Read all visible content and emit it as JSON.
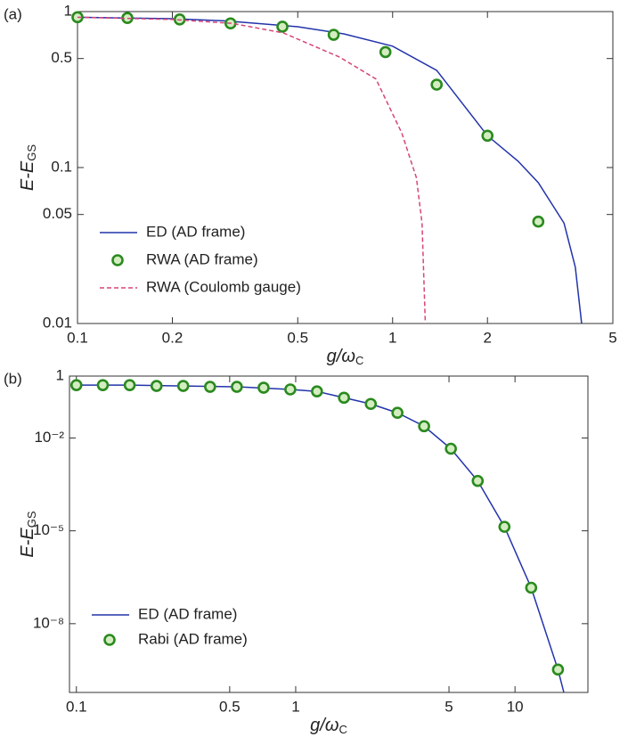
{
  "chart_data": [
    {
      "type": "line",
      "panel_label": "(a)",
      "log_x": true,
      "log_y": true,
      "legend": "lower left",
      "xlabel": {
        "text": "g/ω",
        "sub": "C"
      },
      "ylabel": {
        "text": "E-E",
        "sub": "GS"
      },
      "xlim": [
        0.1,
        5
      ],
      "ylim": [
        0.01,
        1
      ],
      "xticks": [
        0.1,
        0.2,
        0.5,
        1,
        2,
        5
      ],
      "yticks": [
        0.01,
        0.05,
        0.1,
        0.5,
        1
      ],
      "series": [
        {
          "name": "ED (AD frame)",
          "color": "#2233aa",
          "style": "line",
          "x": [
            0.1,
            0.2,
            0.3,
            0.5,
            0.7,
            1,
            1.38,
            2,
            2.5,
            2.9,
            3.5,
            3.8,
            3.98
          ],
          "values": [
            0.92,
            0.9,
            0.87,
            0.8,
            0.72,
            0.6,
            0.42,
            0.16,
            0.11,
            0.08,
            0.044,
            0.023,
            0.01
          ]
        },
        {
          "name": "RWA (AD frame)",
          "color": "#2a8a1f",
          "style": "markers",
          "x": [
            0.1,
            0.144,
            0.211,
            0.306,
            0.447,
            0.65,
            0.949,
            1.38,
            2.0,
            2.9
          ],
          "values": [
            0.92,
            0.91,
            0.89,
            0.84,
            0.8,
            0.71,
            0.55,
            0.34,
            0.16,
            0.045
          ]
        },
        {
          "name": "RWA (Coulomb gauge)",
          "color": "#d6457a",
          "style": "dashed",
          "x": [
            0.1,
            0.2,
            0.31,
            0.45,
            0.68,
            0.885,
            1.07,
            1.19,
            1.24,
            1.27
          ],
          "values": [
            0.92,
            0.89,
            0.84,
            0.73,
            0.51,
            0.37,
            0.166,
            0.086,
            0.044,
            0.01
          ]
        }
      ]
    },
    {
      "type": "line",
      "panel_label": "(b)",
      "log_x": true,
      "log_y": true,
      "legend": "lower left",
      "xlabel": {
        "text": "g/ω",
        "sub": "C"
      },
      "ylabel": {
        "text": "E-E",
        "sub": "GS"
      },
      "xlim": [
        0.093,
        21.5
      ],
      "ylim": [
        6e-11,
        1
      ],
      "xticks": [
        0.1,
        0.5,
        1,
        5,
        10
      ],
      "yticks": [
        1,
        {
          "value": 0.01,
          "label": "10⁻²"
        },
        {
          "value": 1e-05,
          "label": "10⁻⁵"
        },
        {
          "value": 1e-08,
          "label": "10⁻⁸"
        }
      ],
      "series": [
        {
          "name": "ED (AD frame)",
          "color": "#2233aa",
          "style": "line",
          "x": [
            0.1,
            0.175,
            0.307,
            0.539,
            0.945,
            1.25,
            1.66,
            2.2,
            2.91,
            3.85,
            5.1,
            6.76,
            8.95,
            11.85,
            15.7,
            16.7
          ],
          "values": [
            0.51,
            0.51,
            0.48,
            0.45,
            0.37,
            0.32,
            0.2,
            0.126,
            0.065,
            0.024,
            0.0045,
            0.00041,
            1.35e-05,
            1.45e-07,
            3.3e-10,
            6e-11
          ]
        },
        {
          "name": "Rabi (AD frame)",
          "color": "#2a8a1f",
          "style": "markers",
          "x": [
            0.1,
            0.132,
            0.175,
            0.232,
            0.307,
            0.407,
            0.539,
            0.714,
            0.945,
            1.25,
            1.66,
            2.2,
            2.91,
            3.85,
            5.1,
            6.76,
            8.95,
            11.85,
            15.7
          ],
          "values": [
            0.51,
            0.51,
            0.51,
            0.48,
            0.48,
            0.45,
            0.45,
            0.42,
            0.37,
            0.32,
            0.2,
            0.126,
            0.065,
            0.024,
            0.0045,
            0.00041,
            1.35e-05,
            1.45e-07,
            3.3e-10
          ]
        }
      ]
    }
  ]
}
